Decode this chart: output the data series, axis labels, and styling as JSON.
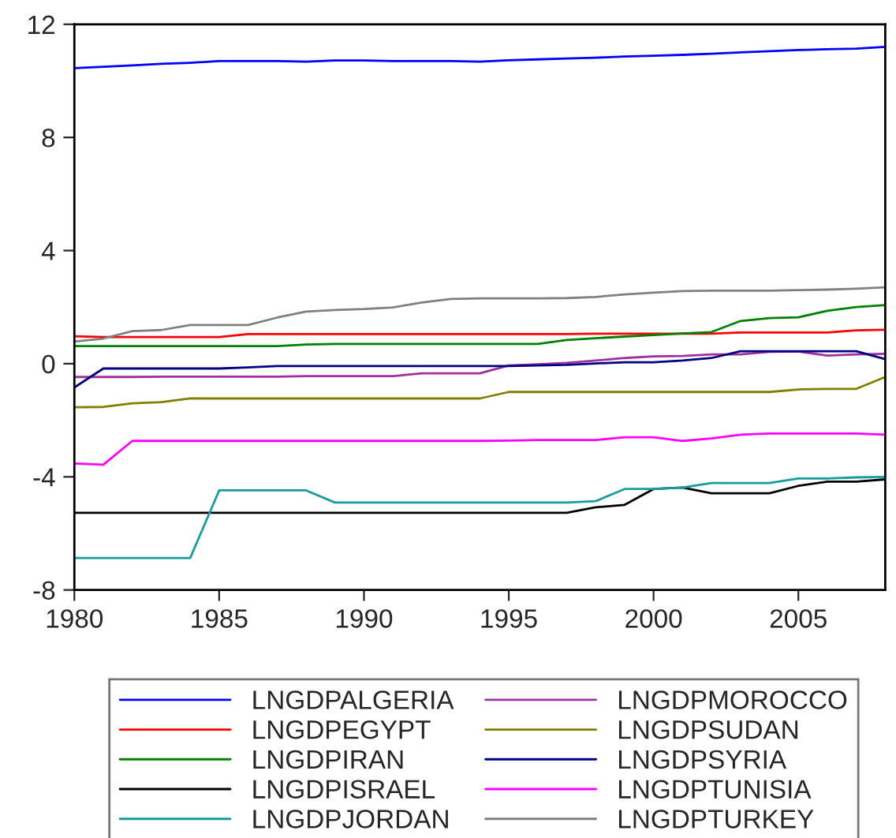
{
  "chart_data": {
    "type": "line",
    "x": [
      1980,
      1981,
      1982,
      1983,
      1984,
      1985,
      1986,
      1987,
      1988,
      1989,
      1990,
      1991,
      1992,
      1993,
      1994,
      1995,
      1996,
      1997,
      1998,
      1999,
      2000,
      2001,
      2002,
      2003,
      2004,
      2005,
      2006,
      2007,
      2008
    ],
    "xlim": [
      1980,
      2008
    ],
    "xticks": [
      1980,
      1985,
      1990,
      1995,
      2000,
      2005
    ],
    "ylim": [
      -8,
      12
    ],
    "yticks": [
      -8,
      -4,
      0,
      4,
      8,
      12
    ],
    "grid": false,
    "legend": "bottom",
    "marker": "none",
    "line_style": "solid",
    "series": [
      {
        "name": "LNGDPALGERIA",
        "color": "#0000ff",
        "values": [
          10.45,
          10.5,
          10.55,
          10.6,
          10.64,
          10.7,
          10.7,
          10.7,
          10.68,
          10.72,
          10.72,
          10.7,
          10.7,
          10.7,
          10.68,
          10.73,
          10.76,
          10.79,
          10.82,
          10.86,
          10.89,
          10.92,
          10.96,
          11.01,
          11.05,
          11.09,
          11.12,
          11.14,
          11.2
        ]
      },
      {
        "name": "LNGDPEGYPT",
        "color": "#ff0000",
        "values": [
          0.97,
          0.94,
          0.94,
          0.94,
          0.94,
          0.94,
          1.05,
          1.05,
          1.05,
          1.05,
          1.05,
          1.05,
          1.05,
          1.05,
          1.05,
          1.05,
          1.05,
          1.05,
          1.06,
          1.06,
          1.06,
          1.06,
          1.06,
          1.1,
          1.1,
          1.1,
          1.1,
          1.18,
          1.2
        ]
      },
      {
        "name": "LNGDPIRAN",
        "color": "#008000",
        "values": [
          0.62,
          0.62,
          0.62,
          0.62,
          0.62,
          0.62,
          0.62,
          0.62,
          0.68,
          0.7,
          0.7,
          0.7,
          0.7,
          0.7,
          0.7,
          0.7,
          0.7,
          0.84,
          0.9,
          0.96,
          1.01,
          1.07,
          1.12,
          1.51,
          1.61,
          1.64,
          1.87,
          2.0,
          2.07
        ]
      },
      {
        "name": "LNGDPISRAEL",
        "color": "#000000",
        "values": [
          -5.27,
          -5.27,
          -5.27,
          -5.27,
          -5.27,
          -5.27,
          -5.27,
          -5.27,
          -5.27,
          -5.27,
          -5.27,
          -5.27,
          -5.27,
          -5.27,
          -5.27,
          -5.27,
          -5.27,
          -5.27,
          -5.08,
          -4.99,
          -4.43,
          -4.38,
          -4.58,
          -4.58,
          -4.58,
          -4.32,
          -4.17,
          -4.17,
          -4.09
        ]
      },
      {
        "name": "LNGDPJORDAN",
        "color": "#199c9c",
        "values": [
          -6.87,
          -6.87,
          -6.87,
          -6.87,
          -6.87,
          -4.48,
          -4.48,
          -4.48,
          -4.48,
          -4.91,
          -4.91,
          -4.91,
          -4.91,
          -4.91,
          -4.91,
          -4.91,
          -4.91,
          -4.91,
          -4.86,
          -4.43,
          -4.43,
          -4.38,
          -4.22,
          -4.22,
          -4.22,
          -4.06,
          -4.06,
          -4.02,
          -4.0
        ]
      },
      {
        "name": "LNGDPMOROCCO",
        "color": "#a030a0",
        "values": [
          -0.47,
          -0.47,
          -0.47,
          -0.46,
          -0.46,
          -0.46,
          -0.46,
          -0.46,
          -0.44,
          -0.44,
          -0.44,
          -0.44,
          -0.34,
          -0.34,
          -0.34,
          -0.06,
          -0.02,
          0.03,
          0.11,
          0.2,
          0.26,
          0.27,
          0.33,
          0.33,
          0.42,
          0.43,
          0.29,
          0.33,
          0.35
        ]
      },
      {
        "name": "LNGDPSUDAN",
        "color": "#808000",
        "values": [
          -1.54,
          -1.53,
          -1.4,
          -1.36,
          -1.23,
          -1.23,
          -1.23,
          -1.23,
          -1.23,
          -1.23,
          -1.23,
          -1.23,
          -1.23,
          -1.23,
          -1.23,
          -1.0,
          -1.0,
          -1.0,
          -1.0,
          -1.0,
          -1.0,
          -1.0,
          -1.0,
          -1.0,
          -1.0,
          -0.91,
          -0.89,
          -0.89,
          -0.47
        ]
      },
      {
        "name": "LNGDPSYRIA",
        "color": "#000080",
        "values": [
          -0.84,
          -0.17,
          -0.17,
          -0.17,
          -0.17,
          -0.17,
          -0.13,
          -0.08,
          -0.08,
          -0.08,
          -0.08,
          -0.08,
          -0.08,
          -0.08,
          -0.08,
          -0.08,
          -0.06,
          -0.04,
          0.01,
          0.05,
          0.05,
          0.11,
          0.2,
          0.44,
          0.44,
          0.44,
          0.44,
          0.44,
          0.16
        ]
      },
      {
        "name": "LNGDPTUNISIA",
        "color": "#ff00ff",
        "values": [
          -3.53,
          -3.57,
          -2.73,
          -2.73,
          -2.73,
          -2.73,
          -2.73,
          -2.73,
          -2.73,
          -2.73,
          -2.73,
          -2.73,
          -2.73,
          -2.73,
          -2.73,
          -2.72,
          -2.7,
          -2.7,
          -2.7,
          -2.6,
          -2.6,
          -2.73,
          -2.64,
          -2.51,
          -2.47,
          -2.47,
          -2.47,
          -2.47,
          -2.51
        ]
      },
      {
        "name": "LNGDPTURKEY",
        "color": "#808080",
        "values": [
          0.78,
          0.89,
          1.15,
          1.19,
          1.37,
          1.37,
          1.37,
          1.63,
          1.84,
          1.9,
          1.93,
          1.99,
          2.16,
          2.29,
          2.31,
          2.31,
          2.31,
          2.32,
          2.36,
          2.45,
          2.51,
          2.57,
          2.58,
          2.58,
          2.58,
          2.6,
          2.62,
          2.65,
          2.7
        ]
      }
    ]
  }
}
